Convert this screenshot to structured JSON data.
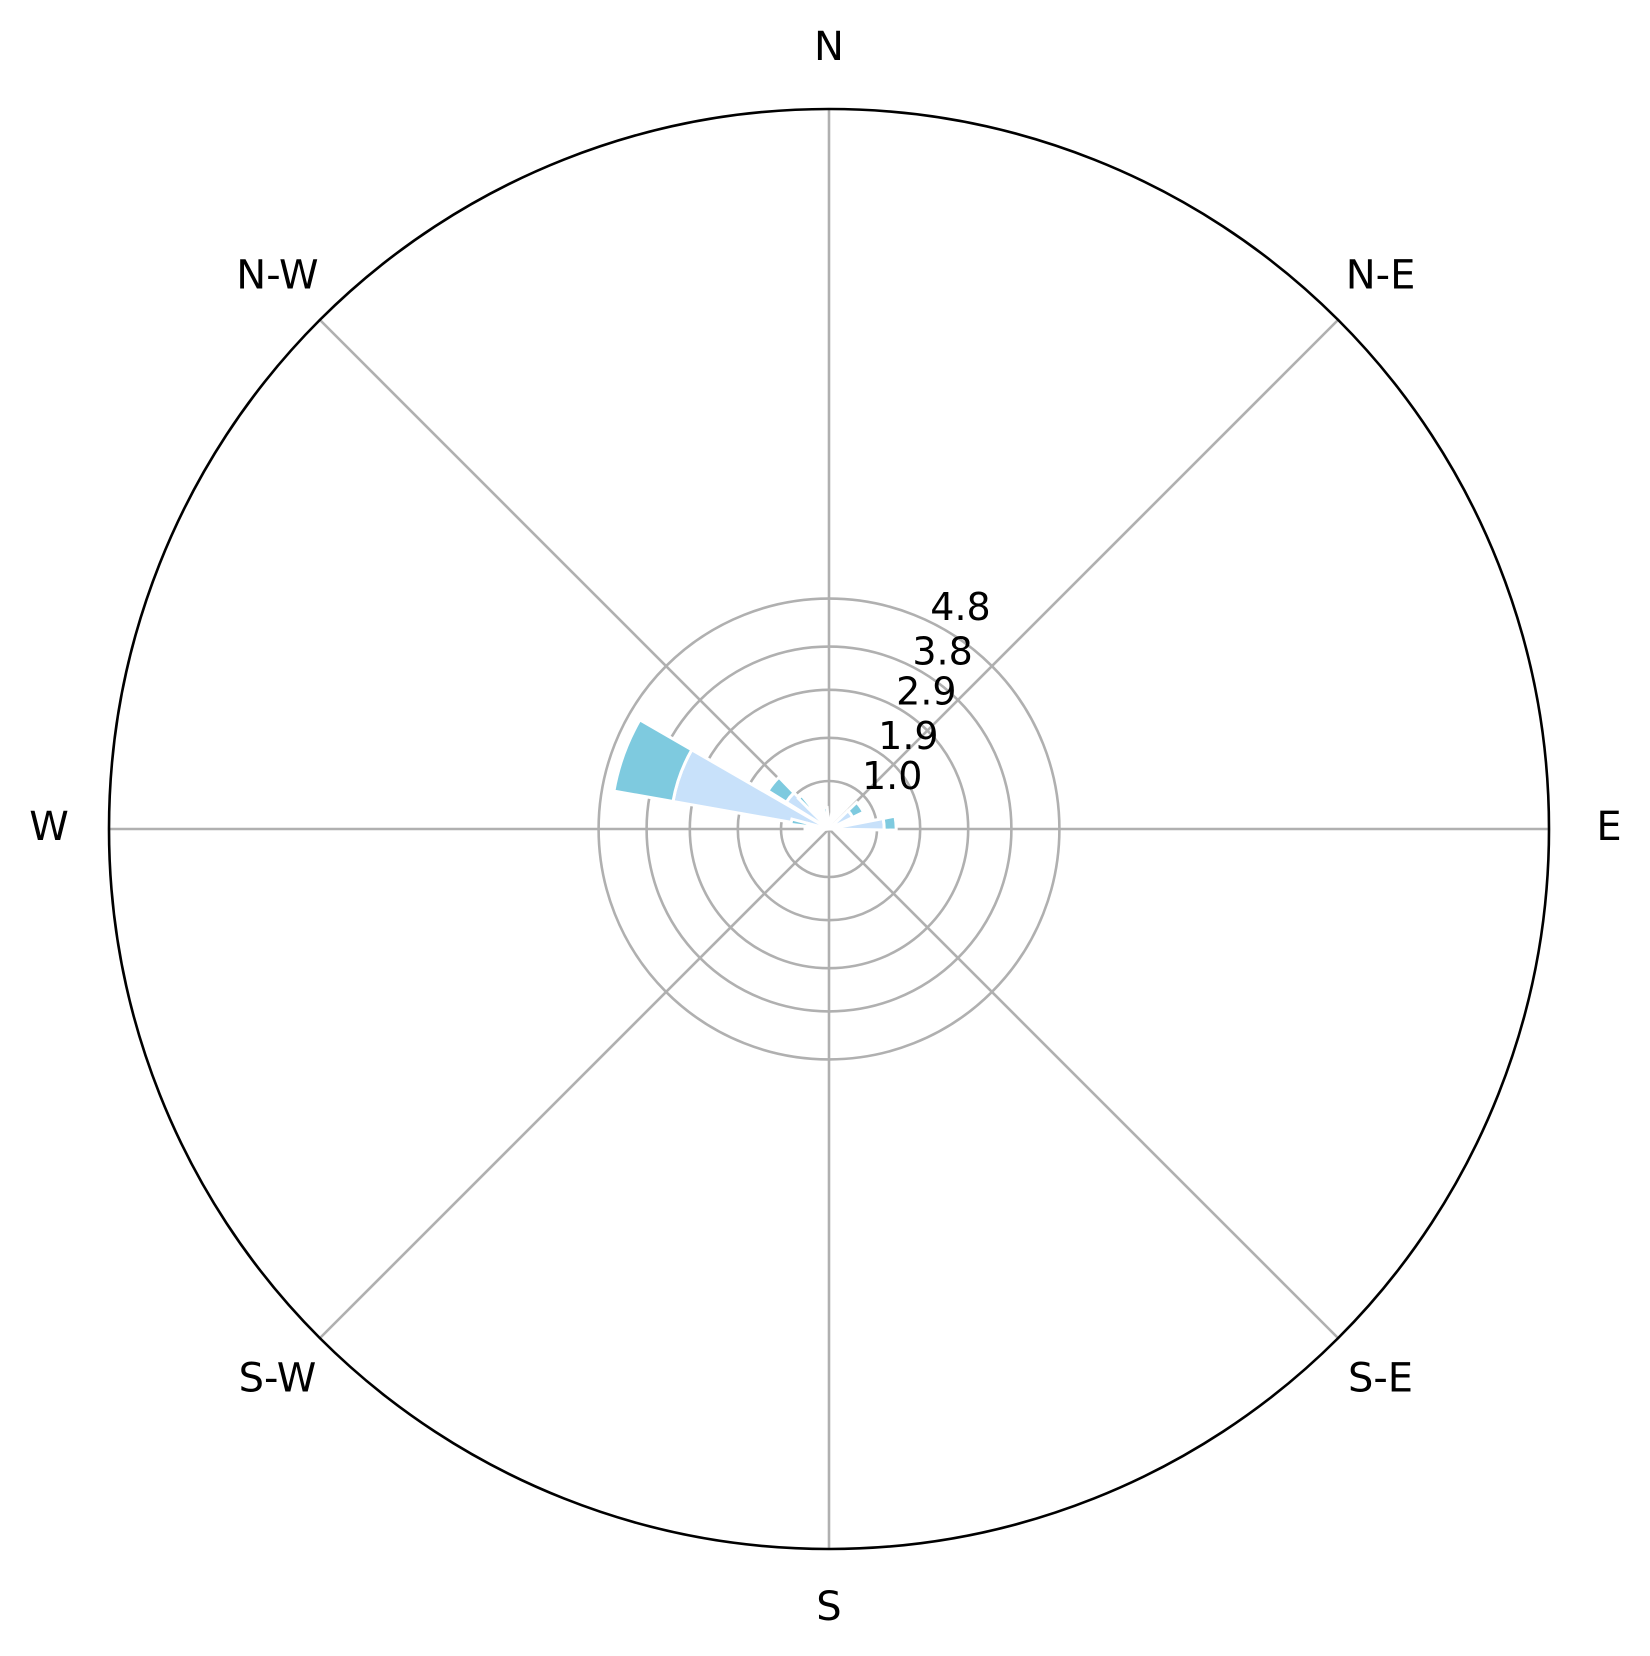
{
  "chart_data": {
    "type": "windrose",
    "title": "",
    "direction_labels": [
      "E",
      "N-E",
      "N",
      "N-W",
      "W",
      "S-W",
      "S",
      "S-E"
    ],
    "r_ticks": [
      1.0,
      1.9,
      2.9,
      3.8,
      4.8
    ],
    "r_tick_labels": [
      "1.0",
      "1.9",
      "2.9",
      "3.8",
      "4.8"
    ],
    "r_max": 15.0,
    "colors": {
      "dark": "#7ecadf",
      "light": "#c8e1fa",
      "grid": "#b0b0b0",
      "outline": "#000000",
      "separator": "#ffffff"
    },
    "bars": [
      {
        "direction_deg": 160,
        "width_deg": 20,
        "stacks": [
          {
            "value": 3.3,
            "color": "light"
          },
          {
            "value": 1.25,
            "color": "dark"
          }
        ]
      },
      {
        "direction_deg": 141,
        "width_deg": 14,
        "stacks": [
          {
            "value": 1.05,
            "color": "light"
          },
          {
            "value": 0.45,
            "color": "dark"
          }
        ]
      },
      {
        "direction_deg": 132,
        "width_deg": 6,
        "stacks": [
          {
            "value": 0.6,
            "color": "light"
          },
          {
            "value": 0.3,
            "color": "dark"
          }
        ]
      },
      {
        "direction_deg": 169,
        "width_deg": 8,
        "stacks": [
          {
            "value": 0.45,
            "color": "light"
          },
          {
            "value": 0.35,
            "color": "dark"
          }
        ]
      },
      {
        "direction_deg": 183,
        "width_deg": 6,
        "stacks": [
          {
            "value": 0.5,
            "color": "dark"
          }
        ]
      },
      {
        "direction_deg": 100,
        "width_deg": 10,
        "stacks": [
          {
            "value": 0.3,
            "color": "light"
          },
          {
            "value": 0.15,
            "color": "dark"
          }
        ]
      },
      {
        "direction_deg": 75,
        "width_deg": 10,
        "stacks": [
          {
            "value": 0.25,
            "color": "light"
          },
          {
            "value": 0.1,
            "color": "dark"
          }
        ]
      },
      {
        "direction_deg": 35,
        "width_deg": 18,
        "stacks": [
          {
            "value": 0.55,
            "color": "light"
          },
          {
            "value": 0.25,
            "color": "dark"
          }
        ]
      },
      {
        "direction_deg": 5,
        "width_deg": 12,
        "stacks": [
          {
            "value": 1.15,
            "color": "light"
          },
          {
            "value": 0.25,
            "color": "dark"
          }
        ]
      }
    ]
  }
}
